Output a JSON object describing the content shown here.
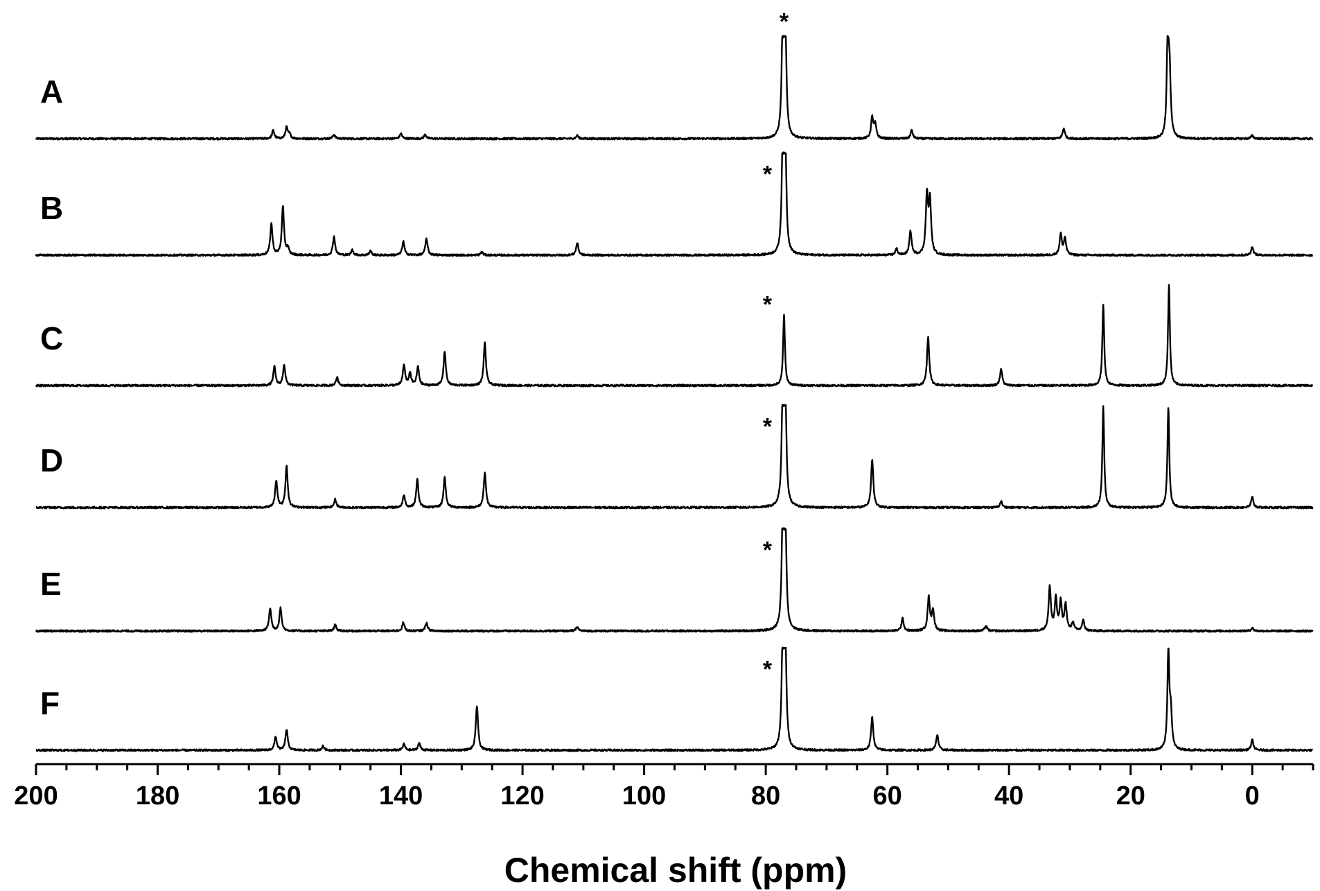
{
  "chart_data": {
    "type": "line",
    "title": "",
    "xlabel": "Chemical shift (ppm)",
    "ylabel": "",
    "xlim": [
      200,
      -10
    ],
    "x_reversed": true,
    "grid": false,
    "x_ticks": [
      200,
      180,
      160,
      140,
      120,
      100,
      80,
      60,
      40,
      20,
      0
    ],
    "x_tick_labels": [
      "200",
      "180",
      "160",
      "140",
      "120",
      "100",
      "80",
      "60",
      "40",
      "20",
      "0"
    ],
    "marker_symbol": "*",
    "series": [
      {
        "name": "A",
        "reference_peak_label": "*",
        "peaks": [
          [
            161.0,
            0.08
          ],
          [
            158.8,
            0.11
          ],
          [
            158.3,
            0.04
          ],
          [
            151.0,
            0.04
          ],
          [
            140.0,
            0.05
          ],
          [
            136.0,
            0.04
          ],
          [
            111.0,
            0.03
          ],
          [
            77.2,
            0.97
          ],
          [
            77.0,
            0.97
          ],
          [
            76.8,
            0.97
          ],
          [
            62.5,
            0.2
          ],
          [
            62.0,
            0.13
          ],
          [
            56.0,
            0.08
          ],
          [
            31.0,
            0.1
          ],
          [
            13.9,
            0.96
          ],
          [
            13.6,
            0.6
          ],
          [
            0.0,
            0.03
          ]
        ]
      },
      {
        "name": "B",
        "reference_peak_label": "*",
        "peaks": [
          [
            161.3,
            0.3
          ],
          [
            159.4,
            0.46
          ],
          [
            158.6,
            0.06
          ],
          [
            151.0,
            0.18
          ],
          [
            148.0,
            0.05
          ],
          [
            145.0,
            0.04
          ],
          [
            139.6,
            0.13
          ],
          [
            135.8,
            0.16
          ],
          [
            126.7,
            0.03
          ],
          [
            111.0,
            0.12
          ],
          [
            77.2,
            0.95
          ],
          [
            77.0,
            0.95
          ],
          [
            76.8,
            0.95
          ],
          [
            58.5,
            0.06
          ],
          [
            56.2,
            0.23
          ],
          [
            53.5,
            0.56
          ],
          [
            53.0,
            0.5
          ],
          [
            31.5,
            0.2
          ],
          [
            30.8,
            0.16
          ],
          [
            0.0,
            0.08
          ]
        ]
      },
      {
        "name": "C",
        "reference_peak_label": "*",
        "peaks": [
          [
            160.8,
            0.18
          ],
          [
            159.2,
            0.2
          ],
          [
            150.5,
            0.08
          ],
          [
            139.5,
            0.2
          ],
          [
            138.5,
            0.12
          ],
          [
            137.2,
            0.18
          ],
          [
            132.8,
            0.33
          ],
          [
            126.2,
            0.41
          ],
          [
            77.0,
            0.68
          ],
          [
            53.3,
            0.47
          ],
          [
            41.3,
            0.16
          ],
          [
            24.5,
            0.78
          ],
          [
            13.7,
            0.97
          ]
        ]
      },
      {
        "name": "D",
        "reference_peak_label": "*",
        "peaks": [
          [
            160.5,
            0.26
          ],
          [
            158.8,
            0.4
          ],
          [
            150.8,
            0.08
          ],
          [
            139.5,
            0.12
          ],
          [
            137.3,
            0.27
          ],
          [
            132.8,
            0.29
          ],
          [
            126.2,
            0.34
          ],
          [
            77.2,
            0.97
          ],
          [
            77.0,
            0.97
          ],
          [
            76.8,
            0.97
          ],
          [
            62.5,
            0.46
          ],
          [
            41.3,
            0.06
          ],
          [
            24.5,
            0.97
          ],
          [
            13.8,
            0.97
          ],
          [
            0.0,
            0.1
          ]
        ]
      },
      {
        "name": "E",
        "reference_peak_label": "*",
        "peaks": [
          [
            161.5,
            0.22
          ],
          [
            159.8,
            0.22
          ],
          [
            150.8,
            0.06
          ],
          [
            139.6,
            0.08
          ],
          [
            135.8,
            0.08
          ],
          [
            111.0,
            0.04
          ],
          [
            77.2,
            0.97
          ],
          [
            77.0,
            0.97
          ],
          [
            76.8,
            0.97
          ],
          [
            57.5,
            0.12
          ],
          [
            53.2,
            0.32
          ],
          [
            52.5,
            0.2
          ],
          [
            43.8,
            0.05
          ],
          [
            33.3,
            0.42
          ],
          [
            32.3,
            0.3
          ],
          [
            31.5,
            0.27
          ],
          [
            30.7,
            0.25
          ],
          [
            29.5,
            0.08
          ],
          [
            27.8,
            0.1
          ],
          [
            0.0,
            0.03
          ]
        ]
      },
      {
        "name": "F",
        "reference_peak_label": "*",
        "peaks": [
          [
            160.6,
            0.13
          ],
          [
            158.8,
            0.2
          ],
          [
            152.8,
            0.04
          ],
          [
            139.5,
            0.06
          ],
          [
            137.0,
            0.07
          ],
          [
            127.5,
            0.43
          ],
          [
            77.2,
            0.97
          ],
          [
            77.0,
            0.97
          ],
          [
            76.8,
            0.97
          ],
          [
            62.5,
            0.32
          ],
          [
            51.8,
            0.15
          ],
          [
            13.8,
            0.95
          ],
          [
            13.4,
            0.35
          ],
          [
            0.0,
            0.1
          ]
        ]
      }
    ]
  }
}
